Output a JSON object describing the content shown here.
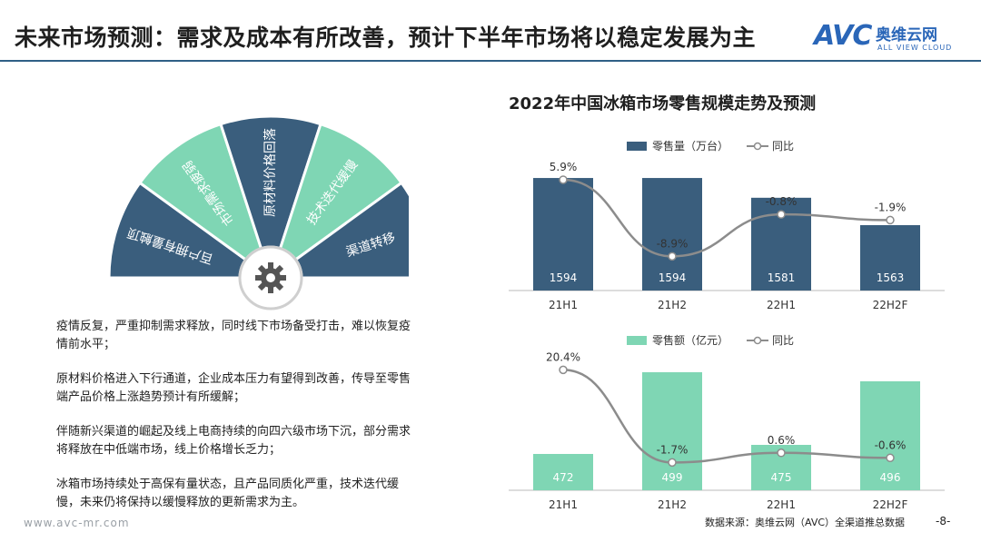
{
  "header": {
    "title": "未来市场预测：需求及成本有所改善，预计下半年市场将以稳定发展为主",
    "logo_mark": "AVC",
    "logo_cn": "奥维云网",
    "logo_en": "ALL VIEW CLOUD"
  },
  "fan": {
    "segments": [
      {
        "label": "百户拥有量触顶",
        "color": "#3a5e7d"
      },
      {
        "label": "市场需求疲弱",
        "color": "#7fd6b4"
      },
      {
        "label": "原材料价格回落",
        "color": "#3a5e7d"
      },
      {
        "label": "技术迭代缓慢",
        "color": "#7fd6b4"
      },
      {
        "label": "渠道转移",
        "color": "#3a5e7d"
      }
    ],
    "center_icon": "gear-icon"
  },
  "bullets": [
    "疫情反复，严重抑制需求释放，同时线下市场备受打击，难以恢复疫情前水平；",
    "原材料价格进入下行通道，企业成本压力有望得到改善，传导至零售端产品价格上涨趋势预计有所缓解；",
    "伴随新兴渠道的崛起及线上电商持续的向四六级市场下沉，部分需求将释放在中低端市场，线上价格增长乏力；",
    "冰箱市场持续处于高保有量状态，且产品同质化严重，技术迭代缓慢，未来仍将保持以缓慢释放的更新需求为主。"
  ],
  "chart_title": "2022年中国冰箱市场零售规模走势及预测",
  "chart_data": [
    {
      "type": "bar",
      "legend_bar": "零售量（万台）",
      "legend_line": "同比",
      "categories": [
        "21H1",
        "21H2",
        "22H1",
        "22H2F"
      ],
      "values": [
        1594,
        1594,
        1581,
        1563
      ],
      "value_labels": [
        "1594",
        "1594",
        "1581",
        "1563"
      ],
      "line_values": [
        5.9,
        -8.9,
        -0.8,
        -1.9
      ],
      "line_labels": [
        "5.9%",
        "-8.9%",
        "-0.8%",
        "-1.9%"
      ],
      "bar_color": "#3a5e7d",
      "line_color": "#8c8c8c"
    },
    {
      "type": "bar",
      "legend_bar": "零售额（亿元）",
      "legend_line": "同比",
      "categories": [
        "21H1",
        "21H2",
        "22H1",
        "22H2F"
      ],
      "values": [
        472,
        499,
        475,
        496
      ],
      "value_labels": [
        "472",
        "499",
        "475",
        "496"
      ],
      "line_values": [
        20.4,
        -1.7,
        0.6,
        -0.6
      ],
      "line_labels": [
        "20.4%",
        "-1.7%",
        "0.6%",
        "-0.6%"
      ],
      "bar_color": "#7fd6b4",
      "line_color": "#8c8c8c"
    }
  ],
  "footer": {
    "url": "www.avc-mr.com",
    "source": "数据来源：奥维云网（AVC）全渠道推总数据",
    "page": "-8-"
  }
}
